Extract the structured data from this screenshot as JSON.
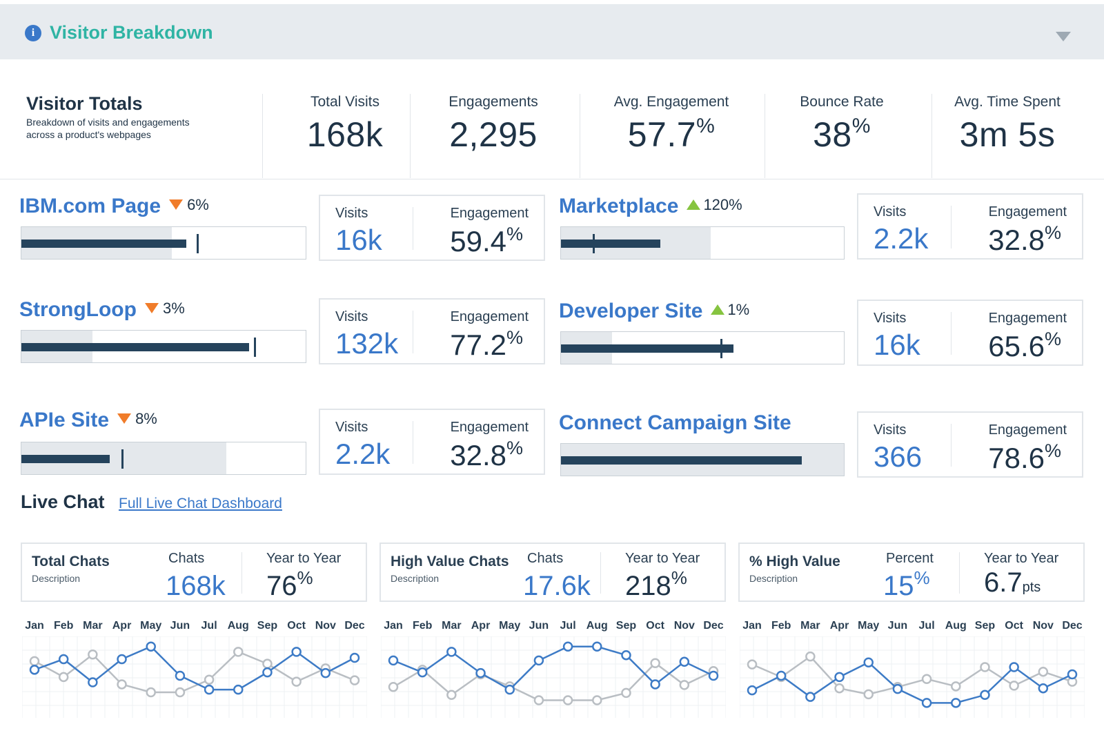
{
  "header": {
    "title": "Visitor Breakdown",
    "info_glyph": "i",
    "info_icon": "info-circle-icon",
    "collapse_icon": "triangle-down-icon"
  },
  "totals": {
    "title": "Visitor Totals",
    "description": "Breakdown of visits and engagements across a product's webpages",
    "kpis": [
      {
        "label": "Total Visits",
        "value": "168k",
        "unit": ""
      },
      {
        "label": "Engagements",
        "value": "2,295",
        "unit": ""
      },
      {
        "label": "Avg. Engagement",
        "value": "57.7",
        "unit": "%"
      },
      {
        "label": "Bounce Rate",
        "value": "38",
        "unit": "%"
      },
      {
        "label": "Avg. Time Spent",
        "value": "3m 5s",
        "unit": ""
      }
    ]
  },
  "sites": [
    {
      "name": "IBM.com Page",
      "trend": "down",
      "delta": "6%",
      "range": 0.53,
      "bar": 0.58,
      "target": 0.62,
      "visits_label": "Visits",
      "visits": "16k",
      "engagement_label": "Engagement",
      "engagement": "59.4",
      "engagement_unit": "%"
    },
    {
      "name": "Marketplace",
      "trend": "up",
      "delta": "120%",
      "range": 0.53,
      "bar": 0.35,
      "target": 0.115,
      "visits_label": "Visits",
      "visits": "2.2k",
      "engagement_label": "Engagement",
      "engagement": "32.8",
      "engagement_unit": "%"
    },
    {
      "name": "StrongLoop",
      "trend": "down",
      "delta": "3%",
      "range": 0.25,
      "bar": 0.8,
      "target": 0.82,
      "visits_label": "Visits",
      "visits": "132k",
      "engagement_label": "Engagement",
      "engagement": "77.2",
      "engagement_unit": "%"
    },
    {
      "name": "Developer Site",
      "trend": "up",
      "delta": "1%",
      "range": 0.18,
      "bar": 0.61,
      "target": 0.565,
      "visits_label": "Visits",
      "visits": "16k",
      "engagement_label": "Engagement",
      "engagement": "65.6",
      "engagement_unit": "%"
    },
    {
      "name": "APIe Site",
      "trend": "down",
      "delta": "8%",
      "range": 0.72,
      "bar": 0.31,
      "target": 0.355,
      "visits_label": "Visits",
      "visits": "2.2k",
      "engagement_label": "Engagement",
      "engagement": "32.8",
      "engagement_unit": "%"
    },
    {
      "name": "Connect Campaign Site",
      "trend": "",
      "delta": "",
      "range": 1.0,
      "bar": 0.85,
      "target": null,
      "visits_label": "Visits",
      "visits": "366",
      "engagement_label": "Engagement",
      "engagement": "78.6",
      "engagement_unit": "%"
    }
  ],
  "live_chat": {
    "title": "Live Chat",
    "link": "Full Live Chat Dashboard",
    "cards": [
      {
        "title": "Total Chats",
        "description": "Description",
        "m1_label": "Chats",
        "m1_value": "168k",
        "m1_unit": "",
        "m2_label": "Year to Year",
        "m2_value": "76",
        "m2_unit": "%",
        "m2_unit_style": "sup"
      },
      {
        "title": "High Value Chats",
        "description": "Description",
        "m1_label": "Chats",
        "m1_value": "17.6k",
        "m1_unit": "",
        "m2_label": "Year to Year",
        "m2_value": "218",
        "m2_unit": "%",
        "m2_unit_style": "sup"
      },
      {
        "title": "% High Value",
        "description": "Description",
        "m1_label": "Percent",
        "m1_value": "15",
        "m1_unit": "%",
        "m2_label": "Year to Year",
        "m2_value": "6.7",
        "m2_unit": "pts",
        "m2_unit_style": "sub"
      }
    ]
  },
  "chart_data": [
    {
      "type": "line",
      "x": [
        "Jan",
        "Feb",
        "Mar",
        "Apr",
        "May",
        "Jun",
        "Jul",
        "Aug",
        "Sep",
        "Oct",
        "Nov",
        "Dec"
      ],
      "ylim": [
        0,
        100
      ],
      "grid": true,
      "series": [
        {
          "color": "#3d7bc6",
          "values": [
            58,
            74,
            39,
            74,
            93,
            49,
            28,
            28,
            54,
            85,
            53,
            76
          ]
        },
        {
          "color": "#b9bec3",
          "values": [
            71,
            47,
            81,
            36,
            24,
            24,
            43,
            85,
            67,
            40,
            60,
            42
          ]
        }
      ]
    },
    {
      "type": "line",
      "x": [
        "Jan",
        "Feb",
        "Mar",
        "Apr",
        "May",
        "Jun",
        "Jul",
        "Aug",
        "Sep",
        "Oct",
        "Nov",
        "Dec"
      ],
      "ylim": [
        0,
        100
      ],
      "grid": true,
      "series": [
        {
          "color": "#3d7bc6",
          "values": [
            72,
            54,
            85,
            53,
            28,
            72,
            93,
            93,
            80,
            36,
            70,
            49
          ]
        },
        {
          "color": "#b9bec3",
          "values": [
            32,
            58,
            20,
            51,
            33,
            12,
            12,
            12,
            23,
            68,
            35,
            56
          ]
        }
      ]
    },
    {
      "type": "line",
      "x": [
        "Jan",
        "Feb",
        "Mar",
        "Apr",
        "May",
        "Jun",
        "Jul",
        "Aug",
        "Sep",
        "Oct",
        "Nov",
        "Dec"
      ],
      "ylim": [
        0,
        100
      ],
      "grid": true,
      "series": [
        {
          "color": "#3d7bc6",
          "values": [
            27,
            49,
            17,
            47,
            69,
            29,
            8,
            8,
            20,
            62,
            30,
            51
          ]
        },
        {
          "color": "#b9bec3",
          "values": [
            66,
            47,
            78,
            30,
            21,
            32,
            44,
            33,
            62,
            34,
            55,
            40
          ]
        }
      ]
    }
  ]
}
